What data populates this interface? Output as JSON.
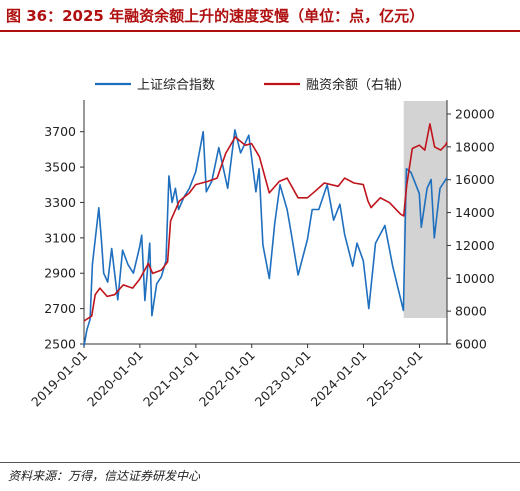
{
  "header": {
    "title": "图 36：2025 年融资余额上升的速度变慢（单位：点，亿元）"
  },
  "footer": {
    "source": "资料来源：万得，信达证券研发中心"
  },
  "chart_data": {
    "type": "line",
    "x_axis_labels": [
      "2019-01-01",
      "2020-01-01",
      "2021-01-01",
      "2022-01-01",
      "2023-01-01",
      "2024-01-01",
      "2025-01-01"
    ],
    "x_range": [
      "2019-01-01",
      "2025-06-30"
    ],
    "y_left_range": [
      2500,
      3800
    ],
    "y_left_ticks": [
      "2500",
      "2700",
      "2900",
      "3100",
      "3300",
      "3500",
      "3700"
    ],
    "y_right_range": [
      6000,
      20000
    ],
    "y_right_ticks": [
      "6000",
      "8000",
      "10000",
      "12000",
      "14000",
      "16000",
      "18000",
      "20000"
    ],
    "shaded_region": [
      "2024-09-20",
      "2025-06-30"
    ],
    "shade_color": "#d3d3d3",
    "legend_position": "top-center",
    "series": [
      {
        "name": "上证综合指数",
        "axis": "left",
        "color": "#1f6fbf",
        "points": [
          [
            "2019-01-01",
            2490
          ],
          [
            "2019-01-20",
            2580
          ],
          [
            "2019-02-10",
            2640
          ],
          [
            "2019-02-25",
            2950
          ],
          [
            "2019-03-10",
            3050
          ],
          [
            "2019-04-08",
            3270
          ],
          [
            "2019-04-25",
            3090
          ],
          [
            "2019-05-10",
            2900
          ],
          [
            "2019-06-05",
            2850
          ],
          [
            "2019-07-01",
            3040
          ],
          [
            "2019-08-10",
            2750
          ],
          [
            "2019-09-10",
            3030
          ],
          [
            "2019-10-15",
            2950
          ],
          [
            "2019-11-20",
            2900
          ],
          [
            "2019-12-31",
            3050
          ],
          [
            "2020-01-13",
            3115
          ],
          [
            "2020-02-03",
            2746
          ],
          [
            "2020-03-05",
            3070
          ],
          [
            "2020-03-20",
            2660
          ],
          [
            "2020-04-20",
            2840
          ],
          [
            "2020-05-20",
            2880
          ],
          [
            "2020-06-20",
            2970
          ],
          [
            "2020-07-09",
            3450
          ],
          [
            "2020-07-30",
            3300
          ],
          [
            "2020-08-20",
            3380
          ],
          [
            "2020-09-10",
            3260
          ],
          [
            "2020-10-15",
            3330
          ],
          [
            "2020-11-20",
            3380
          ],
          [
            "2020-12-31",
            3473
          ],
          [
            "2021-02-18",
            3700
          ],
          [
            "2021-03-10",
            3360
          ],
          [
            "2021-04-15",
            3420
          ],
          [
            "2021-05-31",
            3610
          ],
          [
            "2021-07-28",
            3380
          ],
          [
            "2021-09-13",
            3710
          ],
          [
            "2021-10-20",
            3580
          ],
          [
            "2021-12-13",
            3680
          ],
          [
            "2022-01-28",
            3360
          ],
          [
            "2022-02-18",
            3490
          ],
          [
            "2022-03-15",
            3060
          ],
          [
            "2022-04-26",
            2870
          ],
          [
            "2022-05-31",
            3180
          ],
          [
            "2022-07-05",
            3400
          ],
          [
            "2022-08-20",
            3260
          ],
          [
            "2022-09-15",
            3130
          ],
          [
            "2022-10-31",
            2890
          ],
          [
            "2022-12-31",
            3090
          ],
          [
            "2023-01-31",
            3260
          ],
          [
            "2023-03-15",
            3260
          ],
          [
            "2023-05-09",
            3400
          ],
          [
            "2023-06-20",
            3200
          ],
          [
            "2023-07-31",
            3290
          ],
          [
            "2023-08-31",
            3120
          ],
          [
            "2023-10-23",
            2940
          ],
          [
            "2023-11-20",
            3070
          ],
          [
            "2023-12-31",
            2970
          ],
          [
            "2024-02-05",
            2700
          ],
          [
            "2024-03-20",
            3070
          ],
          [
            "2024-05-20",
            3170
          ],
          [
            "2024-07-10",
            2940
          ],
          [
            "2024-09-18",
            2690
          ],
          [
            "2024-10-08",
            3490
          ],
          [
            "2024-11-07",
            3470
          ],
          [
            "2024-12-31",
            3350
          ],
          [
            "2025-01-13",
            3160
          ],
          [
            "2025-02-20",
            3380
          ],
          [
            "2025-03-18",
            3430
          ],
          [
            "2025-04-08",
            3100
          ],
          [
            "2025-05-15",
            3380
          ],
          [
            "2025-06-30",
            3440
          ]
        ]
      },
      {
        "name": "融资余额（右轴）",
        "axis": "right",
        "color": "#c0141c",
        "points": [
          [
            "2019-01-01",
            7400
          ],
          [
            "2019-02-20",
            7700
          ],
          [
            "2019-03-15",
            9000
          ],
          [
            "2019-04-15",
            9400
          ],
          [
            "2019-06-01",
            8900
          ],
          [
            "2019-07-20",
            9000
          ],
          [
            "2019-09-15",
            9600
          ],
          [
            "2019-11-15",
            9400
          ],
          [
            "2019-12-31",
            9950
          ],
          [
            "2020-02-25",
            10900
          ],
          [
            "2020-03-25",
            10300
          ],
          [
            "2020-05-20",
            10500
          ],
          [
            "2020-06-30",
            11000
          ],
          [
            "2020-07-20",
            13500
          ],
          [
            "2020-09-15",
            14700
          ],
          [
            "2020-11-20",
            15200
          ],
          [
            "2020-12-31",
            15700
          ],
          [
            "2021-03-20",
            15900
          ],
          [
            "2021-05-20",
            16100
          ],
          [
            "2021-07-15",
            17600
          ],
          [
            "2021-09-15",
            18600
          ],
          [
            "2021-11-20",
            18100
          ],
          [
            "2021-12-31",
            18200
          ],
          [
            "2022-02-20",
            17400
          ],
          [
            "2022-04-26",
            15200
          ],
          [
            "2022-06-30",
            15900
          ],
          [
            "2022-08-20",
            16100
          ],
          [
            "2022-10-31",
            14900
          ],
          [
            "2022-12-31",
            14900
          ],
          [
            "2023-02-20",
            15300
          ],
          [
            "2023-04-20",
            15800
          ],
          [
            "2023-07-20",
            15600
          ],
          [
            "2023-08-31",
            16100
          ],
          [
            "2023-10-31",
            15800
          ],
          [
            "2023-12-31",
            15700
          ],
          [
            "2024-01-31",
            14700
          ],
          [
            "2024-02-20",
            14300
          ],
          [
            "2024-04-20",
            14900
          ],
          [
            "2024-06-20",
            14600
          ],
          [
            "2024-08-31",
            13900
          ],
          [
            "2024-09-20",
            13800
          ],
          [
            "2024-10-10",
            15700
          ],
          [
            "2024-11-15",
            17900
          ],
          [
            "2024-12-31",
            18100
          ],
          [
            "2025-02-05",
            17800
          ],
          [
            "2025-03-10",
            19400
          ],
          [
            "2025-04-10",
            18000
          ],
          [
            "2025-05-20",
            17800
          ],
          [
            "2025-06-20",
            18100
          ],
          [
            "2025-06-30",
            18300
          ]
        ]
      }
    ]
  }
}
